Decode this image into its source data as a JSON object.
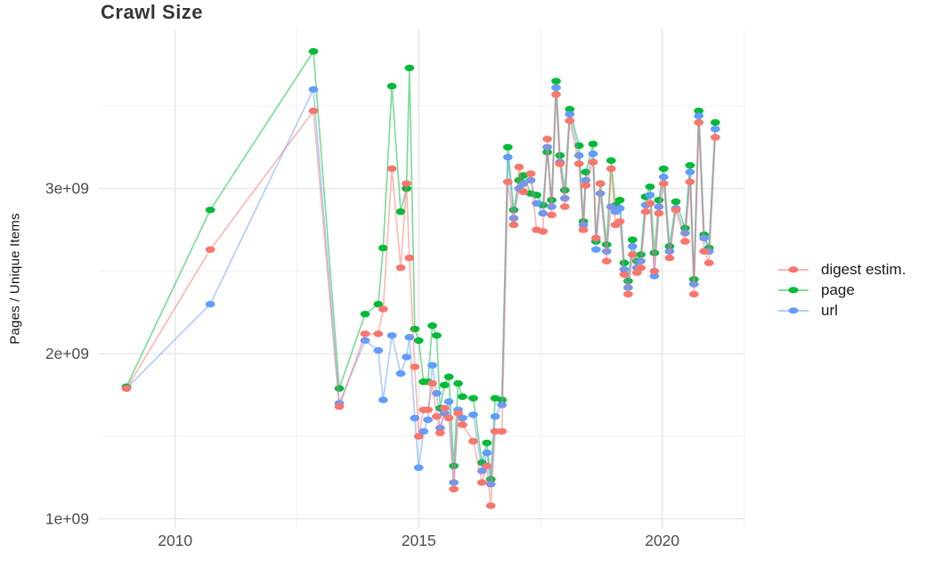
{
  "chart_data": {
    "type": "line",
    "title": "Crawl Size",
    "ylabel": "Pages / Unique Items",
    "xlabel": "",
    "unit": "billions (value 1.8 = 1.8e+09)",
    "legend_position": "right",
    "grid": true,
    "background": "#FFFFFF",
    "colors": {
      "grid_major": "#E3E3E3",
      "grid_minor": "#EFEFEF",
      "axis_text": "#4D4D4D",
      "title_text": "#363636",
      "legend_text": "#1A1A1A"
    },
    "x_ticks": [
      {
        "value": 2010,
        "label": "2010"
      },
      {
        "value": 2015,
        "label": "2015"
      },
      {
        "value": 2020,
        "label": "2020"
      }
    ],
    "x_minor_ticks": [
      2012.5,
      2017.5
    ],
    "y_ticks": [
      {
        "value": 1.0,
        "label": "1e+09"
      },
      {
        "value": 2.0,
        "label": "2e+09"
      },
      {
        "value": 3.0,
        "label": "3e+09"
      }
    ],
    "y_minor_ticks": [
      1.5,
      2.5,
      3.5
    ],
    "xlim": [
      2008.4,
      2021.7
    ],
    "ylim": [
      0.94,
      3.96
    ],
    "x": [
      2009.0,
      2010.72,
      2012.84,
      2013.37,
      2013.9,
      2014.17,
      2014.27,
      2014.45,
      2014.63,
      2014.75,
      2014.81,
      2014.92,
      2015.0,
      2015.1,
      2015.19,
      2015.28,
      2015.37,
      2015.44,
      2015.53,
      2015.62,
      2015.72,
      2015.81,
      2015.9,
      2016.12,
      2016.3,
      2016.4,
      2016.48,
      2016.57,
      2016.71,
      2016.83,
      2016.95,
      2017.06,
      2017.15,
      2017.3,
      2017.42,
      2017.55,
      2017.64,
      2017.73,
      2017.82,
      2017.9,
      2018.0,
      2018.1,
      2018.29,
      2018.38,
      2018.43,
      2018.58,
      2018.64,
      2018.73,
      2018.86,
      2018.95,
      2019.04,
      2019.13,
      2019.22,
      2019.3,
      2019.39,
      2019.48,
      2019.56,
      2019.66,
      2019.75,
      2019.84,
      2019.93,
      2020.03,
      2020.15,
      2020.28,
      2020.47,
      2020.57,
      2020.65,
      2020.75,
      2020.86,
      2020.96,
      2021.09
    ],
    "series": [
      {
        "name": "digest estim.",
        "color": "#F8766D",
        "values": [
          1.79,
          2.63,
          3.47,
          1.68,
          2.12,
          2.12,
          2.27,
          3.12,
          2.52,
          3.03,
          2.58,
          1.92,
          1.5,
          1.66,
          1.66,
          1.82,
          1.62,
          1.52,
          1.67,
          1.61,
          1.18,
          1.64,
          1.57,
          1.47,
          1.22,
          1.32,
          1.08,
          1.53,
          1.53,
          3.04,
          2.78,
          3.13,
          2.98,
          3.09,
          2.75,
          2.74,
          3.3,
          2.84,
          3.57,
          3.15,
          2.89,
          3.41,
          3.15,
          2.75,
          3.02,
          3.16,
          2.7,
          3.03,
          2.56,
          3.12,
          2.78,
          2.8,
          2.48,
          2.36,
          2.6,
          2.49,
          2.52,
          2.86,
          2.91,
          2.5,
          2.85,
          3.03,
          2.58,
          2.87,
          2.68,
          3.04,
          2.36,
          3.4,
          2.62,
          2.55,
          3.31
        ]
      },
      {
        "name": "page",
        "color": "#00BA38",
        "values": [
          1.8,
          2.87,
          3.83,
          1.79,
          2.24,
          2.3,
          2.64,
          3.62,
          2.86,
          3.0,
          3.73,
          2.15,
          2.08,
          1.83,
          1.83,
          2.17,
          2.11,
          1.67,
          1.81,
          1.86,
          1.32,
          1.82,
          1.74,
          1.73,
          1.34,
          1.46,
          1.24,
          1.73,
          1.72,
          3.25,
          2.87,
          3.05,
          3.08,
          2.97,
          2.96,
          2.9,
          3.22,
          2.93,
          3.65,
          3.2,
          2.99,
          3.48,
          3.26,
          2.8,
          3.1,
          3.27,
          2.68,
          3.03,
          2.66,
          3.17,
          2.9,
          2.93,
          2.55,
          2.44,
          2.69,
          2.56,
          2.6,
          2.95,
          3.01,
          2.61,
          2.93,
          3.12,
          2.65,
          2.92,
          2.76,
          3.14,
          2.45,
          3.47,
          2.72,
          2.64,
          3.4
        ]
      },
      {
        "name": "url",
        "color": "#619CFF",
        "values": [
          1.79,
          2.3,
          3.6,
          1.7,
          2.08,
          2.02,
          1.72,
          2.11,
          1.88,
          1.98,
          2.1,
          1.61,
          1.31,
          1.53,
          1.6,
          1.93,
          1.76,
          1.55,
          1.64,
          1.71,
          1.22,
          1.66,
          1.61,
          1.63,
          1.29,
          1.4,
          1.21,
          1.62,
          1.69,
          3.19,
          2.82,
          3.0,
          3.03,
          3.05,
          2.91,
          2.85,
          3.25,
          2.89,
          3.61,
          3.16,
          2.94,
          3.45,
          3.2,
          2.78,
          3.05,
          3.21,
          2.63,
          2.97,
          2.62,
          2.89,
          2.86,
          2.88,
          2.51,
          2.4,
          2.65,
          2.52,
          2.56,
          2.9,
          2.96,
          2.47,
          2.89,
          3.07,
          2.62,
          2.88,
          2.73,
          3.1,
          2.42,
          3.44,
          2.7,
          2.62,
          3.36
        ]
      }
    ]
  }
}
